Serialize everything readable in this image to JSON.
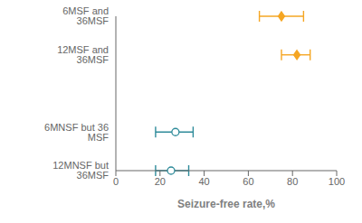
{
  "chart_data": {
    "type": "scatter",
    "orientation": "horizontal",
    "categories": [
      "6MSF and 36MSF",
      "12MSF and 36MSF",
      null,
      "6MNSF but 36 MSF",
      "12MNSF but 36MSF"
    ],
    "series": [
      {
        "color": "#F5A623",
        "marker": "diamond",
        "values": [
          75,
          82,
          null,
          null,
          null
        ],
        "error_low": [
          10,
          7,
          null,
          null,
          null
        ],
        "error_high": [
          10,
          6,
          null,
          null,
          null
        ]
      },
      {
        "color": "#2E8B9A",
        "marker": "open_circle",
        "values": [
          null,
          null,
          null,
          27,
          25
        ],
        "error_low": [
          null,
          null,
          null,
          9,
          7
        ],
        "error_high": [
          null,
          null,
          null,
          8,
          8
        ]
      }
    ],
    "xlabel": "Seizure-free rate,%",
    "xlim": [
      0,
      100
    ],
    "xticks": [
      0,
      20,
      40,
      60,
      80,
      100
    ],
    "grid": false
  }
}
